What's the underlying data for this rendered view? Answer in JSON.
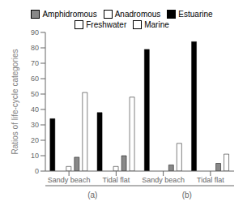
{
  "chart_data": {
    "type": "bar",
    "ylabel": "Ratios of life-cycle categories",
    "categories": [
      "Sandy beach",
      "Tidal flat",
      "Sandy beach",
      "Tidal flat"
    ],
    "annotations": [
      "(a)",
      "(b)"
    ],
    "series": [
      {
        "name": "Estuarine",
        "color": "#000000",
        "values": [
          34,
          38,
          79,
          84
        ]
      },
      {
        "name": "Marine",
        "color": "#ffffff",
        "values": [
          0,
          0,
          0,
          0
        ]
      },
      {
        "name": "Anadromous",
        "color": "#ffffff",
        "values": [
          3,
          3,
          0,
          0
        ]
      },
      {
        "name": "Amphidromous",
        "color": "#888888",
        "values": [
          9,
          10,
          4,
          5
        ]
      },
      {
        "name": "Freshwater",
        "color": "#ffffff",
        "values": [
          51,
          48,
          18,
          11
        ]
      }
    ],
    "ylim": [
      0,
      90
    ],
    "yticks": [
      0,
      10,
      20,
      30,
      40,
      50,
      60,
      70,
      80,
      90
    ],
    "grid": false,
    "legend": "top"
  }
}
